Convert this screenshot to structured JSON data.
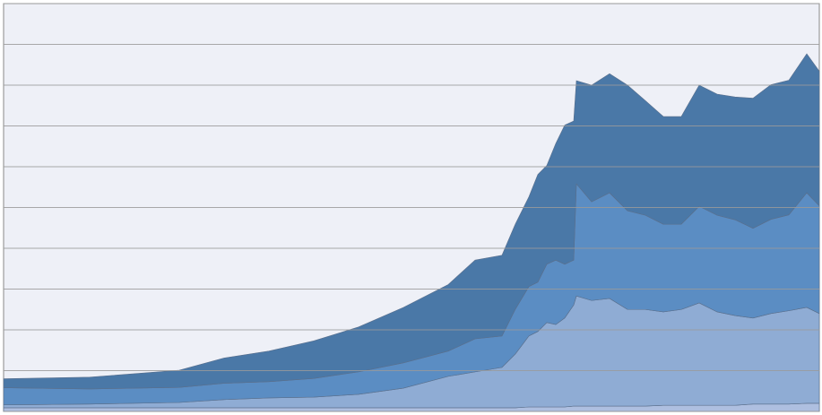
{
  "chart_data": {
    "type": "stacked_area",
    "x": [
      0,
      96,
      196,
      246,
      296,
      346,
      396,
      446,
      496,
      526,
      556,
      571,
      586,
      596,
      606,
      616,
      626,
      636,
      639,
      656,
      676,
      696,
      716,
      736,
      756,
      776,
      796,
      816,
      836,
      856,
      876,
      896,
      910
    ],
    "xlim": [
      0,
      910
    ],
    "ylim": [
      0,
      100
    ],
    "yticks": [
      0,
      10,
      20,
      30,
      40,
      50,
      60,
      70,
      80,
      90,
      100
    ],
    "grid": true,
    "series": [
      {
        "color": "#aebfe0",
        "values": [
          0.9,
          0.9,
          0.9,
          0.9,
          0.9,
          0.9,
          0.9,
          0.9,
          0.9,
          0.9,
          0.9,
          0.9,
          1.1,
          1.1,
          1.1,
          1.1,
          1.1,
          1.3,
          1.3,
          1.3,
          1.3,
          1.3,
          1.3,
          1.5,
          1.5,
          1.5,
          1.5,
          1.5,
          1.8,
          1.8,
          1.8,
          2.0,
          2.0
        ]
      },
      {
        "color": "#8facd4",
        "values": [
          0.7,
          0.9,
          1.3,
          2.0,
          2.4,
          2.6,
          3.3,
          4.8,
          7.7,
          8.8,
          9.9,
          13.2,
          17.4,
          18.5,
          20.7,
          20.2,
          21.8,
          24.8,
          27.0,
          25.9,
          26.4,
          23.7,
          23.7,
          22.9,
          23.5,
          25.1,
          22.9,
          22.0,
          21.1,
          22.2,
          22.9,
          23.5,
          22.0
        ]
      },
      {
        "color": "#5b8dc3",
        "values": [
          4.2,
          3.7,
          3.7,
          4.0,
          4.0,
          4.6,
          5.5,
          6.2,
          6.2,
          8.1,
          7.7,
          11.0,
          12.1,
          12.1,
          14.3,
          15.8,
          13.2,
          11.0,
          27.5,
          24.2,
          25.9,
          24.2,
          23.1,
          21.5,
          20.9,
          23.7,
          23.7,
          23.5,
          22.0,
          23.1,
          23.5,
          28.1,
          26.4
        ]
      },
      {
        "color": "#4a78a7",
        "values": [
          2.2,
          2.9,
          4.2,
          6.2,
          7.5,
          9.2,
          11.0,
          13.6,
          16.3,
          19.3,
          19.8,
          20.9,
          22.0,
          26.4,
          24.2,
          28.6,
          34.1,
          34.1,
          25.3,
          28.6,
          29.2,
          30.8,
          28.1,
          26.4,
          26.4,
          29.7,
          29.7,
          30.1,
          31.9,
          33.0,
          33.0,
          34.1,
          33.0
        ]
      }
    ]
  }
}
